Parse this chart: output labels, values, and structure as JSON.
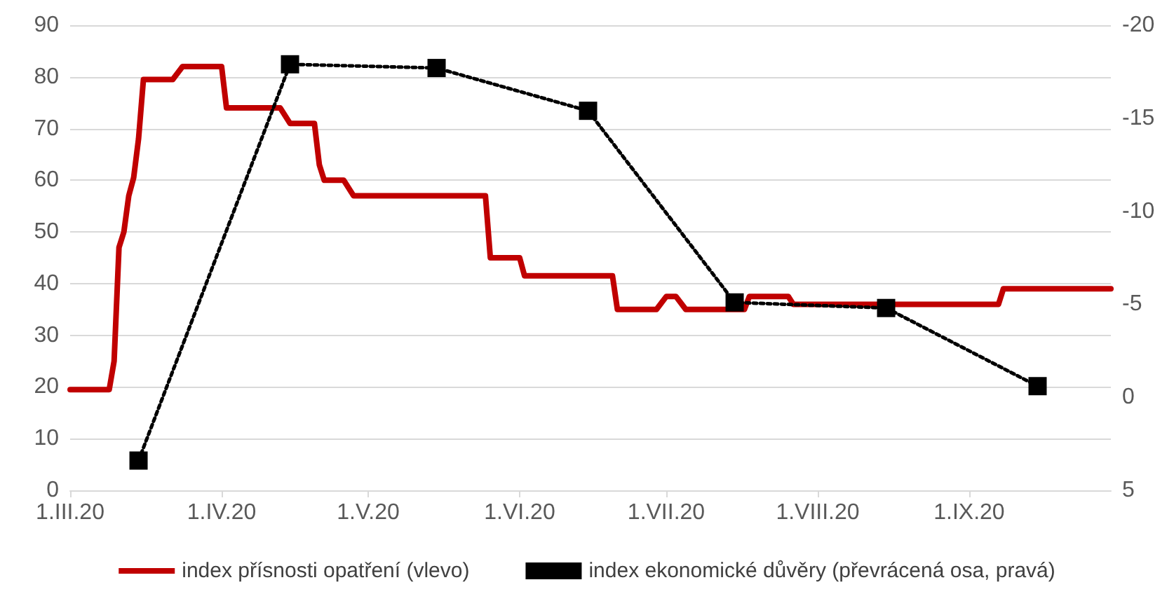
{
  "chart_data": {
    "type": "line",
    "xlim": [
      "2020-03-01",
      "2020-09-30"
    ],
    "xticks": [
      {
        "value": "2020-03-01",
        "label": "1.III.20"
      },
      {
        "value": "2020-04-01",
        "label": "1.IV.20"
      },
      {
        "value": "2020-05-01",
        "label": "1.V.20"
      },
      {
        "value": "2020-06-01",
        "label": "1.VI.20"
      },
      {
        "value": "2020-07-01",
        "label": "1.VII.20"
      },
      {
        "value": "2020-08-01",
        "label": "1.VIII.20"
      },
      {
        "value": "2020-09-01",
        "label": "1.IX.20"
      }
    ],
    "ylim": [
      0,
      90
    ],
    "yticks": [
      0,
      10,
      20,
      30,
      40,
      50,
      60,
      70,
      80,
      90
    ],
    "y2lim": [
      5,
      -20
    ],
    "y2ticks": [
      5,
      0,
      -5,
      -10,
      -15,
      -20
    ],
    "grid": "y",
    "legend": "bottom",
    "series": [
      {
        "name": "index přísnosti opatření (vlevo)",
        "color": "#c00000",
        "marker": "none",
        "line_style": "solid",
        "x": [
          "2020-03-01",
          "2020-03-09",
          "2020-03-10",
          "2020-03-11",
          "2020-03-12",
          "2020-03-13",
          "2020-03-14",
          "2020-03-15",
          "2020-03-16",
          "2020-03-22",
          "2020-03-24",
          "2020-04-01",
          "2020-04-02",
          "2020-04-13",
          "2020-04-15",
          "2020-04-20",
          "2020-04-21",
          "2020-04-22",
          "2020-04-26",
          "2020-04-28",
          "2020-05-25",
          "2020-05-26",
          "2020-06-01",
          "2020-06-02",
          "2020-06-20",
          "2020-06-21",
          "2020-06-29",
          "2020-07-01",
          "2020-07-03",
          "2020-07-05",
          "2020-07-17",
          "2020-07-18",
          "2020-07-26",
          "2020-07-27",
          "2020-09-07",
          "2020-09-08",
          "2020-09-30"
        ],
        "values": [
          19.5,
          19.5,
          25,
          47,
          50,
          57,
          60.5,
          68,
          79.5,
          79.5,
          82,
          82,
          74,
          74,
          71,
          71,
          63,
          60,
          60,
          57,
          57,
          45,
          45,
          41.5,
          41.5,
          35,
          35,
          37.5,
          37.5,
          35,
          35,
          37.5,
          37.5,
          36,
          36,
          39,
          39
        ]
      },
      {
        "name": "index ekonomické důvěry (převrácená osa, pravá)",
        "color": "#000000",
        "marker": "square",
        "line_style": "dotted",
        "axis": "y2",
        "x": [
          "2020-03-15",
          "2020-04-15",
          "2020-05-15",
          "2020-06-15",
          "2020-07-15",
          "2020-08-15",
          "2020-09-15"
        ],
        "values": [
          3.4,
          -17.9,
          -17.7,
          -15.4,
          -5.1,
          -4.8,
          -0.6
        ]
      }
    ]
  }
}
